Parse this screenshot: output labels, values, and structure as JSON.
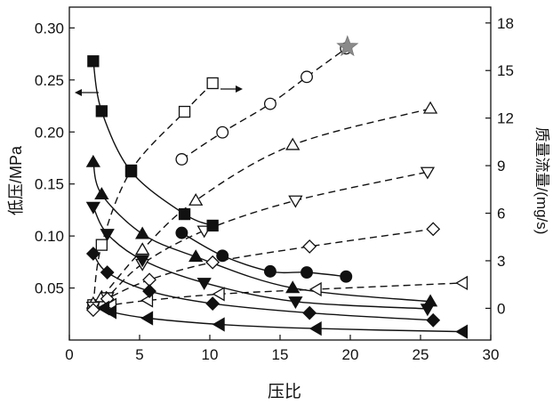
{
  "chart_data": {
    "type": "scatter",
    "title": "",
    "xlabel": "压比",
    "ylabel_left": "低压/MPa",
    "ylabel_right": "质量流量/(mg/s)",
    "xlim": [
      0,
      30
    ],
    "ylim_left": [
      0,
      0.32
    ],
    "ylim_right": [
      -2,
      19
    ],
    "x_ticks": [
      0,
      5,
      10,
      15,
      20,
      25,
      30
    ],
    "y_left_ticks": [
      0.05,
      0.1,
      0.15,
      0.2,
      0.25,
      0.3
    ],
    "y_left_tick_labels": [
      "0.05",
      "0.10",
      "0.15",
      "0.20",
      "0.25",
      "0.30"
    ],
    "y_right_ticks": [
      0,
      3,
      6,
      9,
      12,
      15,
      18
    ],
    "grid": false,
    "legend": "none",
    "axis_arrows": [
      "left",
      "right"
    ],
    "low_pressure_series": [
      {
        "marker": "filled-square",
        "axis": "left",
        "line": "solid",
        "x": [
          1.7,
          2.3,
          4.4,
          8.2,
          10.2
        ],
        "y": [
          0.268,
          0.22,
          0.162,
          0.121,
          0.11
        ]
      },
      {
        "marker": "filled-circle",
        "axis": "left",
        "line": "solid",
        "x": [
          8.0,
          10.9,
          14.3,
          16.9,
          19.7
        ],
        "y": [
          0.103,
          0.081,
          0.066,
          0.065,
          0.061
        ]
      },
      {
        "marker": "filled-triangle-up",
        "axis": "left",
        "line": "solid",
        "x": [
          1.7,
          2.3,
          5.2,
          9.0,
          15.9,
          25.7
        ],
        "y": [
          0.171,
          0.14,
          0.102,
          0.08,
          0.05,
          0.037
        ]
      },
      {
        "marker": "filled-triangle-down",
        "axis": "left",
        "line": "solid",
        "x": [
          1.7,
          2.7,
          5.2,
          9.6,
          16.1,
          25.5
        ],
        "y": [
          0.128,
          0.102,
          0.077,
          0.055,
          0.037,
          0.03
        ]
      },
      {
        "marker": "filled-diamond",
        "axis": "left",
        "line": "solid",
        "x": [
          1.7,
          2.7,
          5.7,
          10.2,
          17.1,
          25.9
        ],
        "y": [
          0.083,
          0.065,
          0.047,
          0.035,
          0.026,
          0.019
        ]
      },
      {
        "marker": "filled-triangle-left",
        "axis": "left",
        "line": "solid",
        "x": [
          2.5,
          3.0,
          5.6,
          10.7,
          17.6,
          28.0
        ],
        "y": [
          0.031,
          0.027,
          0.021,
          0.015,
          0.011,
          0.008
        ]
      }
    ],
    "mass_flow_series": [
      {
        "marker": "open-square",
        "axis": "right",
        "line": "dashed",
        "x": [
          1.7,
          2.3,
          4.4,
          8.2,
          10.2
        ],
        "y": [
          0.2,
          4.0,
          8.7,
          12.4,
          14.2
        ]
      },
      {
        "marker": "open-circle",
        "axis": "right",
        "line": "dashed",
        "x": [
          8.0,
          10.9,
          14.3,
          16.9,
          19.7
        ],
        "y": [
          9.4,
          11.1,
          12.9,
          14.6,
          16.4
        ]
      },
      {
        "marker": "open-triangle-up",
        "axis": "right",
        "line": "dashed",
        "x": [
          1.7,
          2.3,
          5.2,
          9.0,
          15.9,
          25.7
        ],
        "y": [
          0.3,
          0.7,
          3.7,
          6.8,
          10.3,
          12.6
        ]
      },
      {
        "marker": "open-triangle-down",
        "axis": "right",
        "line": "dashed",
        "x": [
          1.7,
          2.7,
          5.2,
          9.6,
          16.1,
          25.5
        ],
        "y": [
          0.1,
          0.7,
          2.8,
          4.9,
          6.8,
          8.6
        ]
      },
      {
        "marker": "open-diamond",
        "axis": "right",
        "line": "dashed",
        "x": [
          1.7,
          2.7,
          5.7,
          10.2,
          17.1,
          25.9
        ],
        "y": [
          -0.1,
          0.6,
          1.8,
          2.9,
          3.9,
          5.0
        ]
      },
      {
        "marker": "open-triangle-left",
        "axis": "right",
        "line": "dashed",
        "x": [
          2.5,
          3.0,
          5.6,
          10.7,
          17.6,
          28.0
        ],
        "y": [
          0.0,
          0.2,
          0.5,
          0.9,
          1.2,
          1.6
        ]
      }
    ],
    "annotations": [
      {
        "marker": "gray-star",
        "axis": "right",
        "x": 19.8,
        "y": 16.5
      }
    ]
  }
}
